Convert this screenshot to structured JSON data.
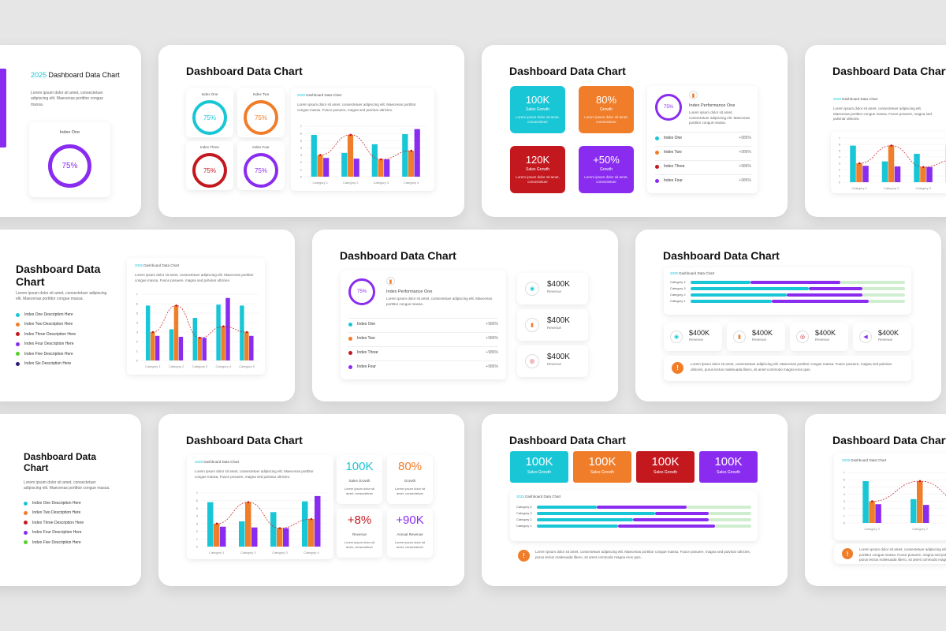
{
  "title": "Dashboard Data Chart",
  "chart_title": "2025 Dashboard Data Chart",
  "chart_title_year": "2025",
  "chart_title_rest": "Dashboard Data Chart",
  "lorem_short": "Lorem ipsum dolor sit amet, consectetuer adipiscing elit. Maecenas porttitor congue massa.",
  "lorem_long": "Lorem ipsum dolor sit amet, consectetuer adipiscing elit. Maecenas porttitor congue massa. Fusce posuere, magna sed pulvinar ultricies.",
  "lorem_note": "Lorem ipsum dolor sit amet, consectetuer adipiscing elit. Maecenas porttitor congue massa. Fusce posuere, magna sed pulvinar ultricies, purus lectus malesuada libero, sit amet commodo magna eros quis.",
  "lorem_kpi": "Lorem ipsum dolor sit amet, consectetuer",
  "colors": {
    "cyan": "#19c6d6",
    "orange": "#f07d2a",
    "red": "#c4181f",
    "purple": "#8a2cf0",
    "green": "#a6e86a",
    "light": "#cfeecf"
  },
  "indexes": [
    "Index One",
    "Index Two",
    "Index Three",
    "Index Four"
  ],
  "ring_value": "75%",
  "index_perf": "Index Performance One",
  "list_value": "+986%",
  "descriptions": [
    "Index One Description Here",
    "Index Two Description Here",
    "Index Three Description Here",
    "Index Four Description Here",
    "Index Five Description Here",
    "Index Six Description Here"
  ],
  "kpis": [
    {
      "value": "100K",
      "label": "Sales Growth"
    },
    {
      "value": "80%",
      "label": "Growth"
    },
    {
      "value": "120K",
      "label": "Sales Growth"
    },
    {
      "value": "+50%",
      "label": "Growth"
    }
  ],
  "kpi_row": {
    "value": "100K",
    "label": "Sales Growth"
  },
  "money": {
    "value": "$400K",
    "label": "Revenue"
  },
  "stats": [
    {
      "value": "100K",
      "label": "Sales Growth"
    },
    {
      "value": "80%",
      "label": "Growth"
    },
    {
      "value": "+8%",
      "label": "Revenue"
    },
    {
      "value": "+90K",
      "label": "Annual Revenue"
    }
  ],
  "categories": [
    "Category 1",
    "Category 2",
    "Category 3",
    "Category 4",
    "Category 5"
  ],
  "hcategories": [
    "Category 4",
    "Category 3",
    "Category 2",
    "Category 1"
  ],
  "chart_data": {
    "type": "bar",
    "title": "2025 Dashboard Data Chart",
    "categories": [
      "Category 1",
      "Category 2",
      "Category 3",
      "Category 4"
    ],
    "series": [
      {
        "values": [
          5.8,
          3.3,
          4.5,
          5.9
        ]
      },
      {
        "values": [
          3.0,
          5.8,
          2.4,
          3.6
        ]
      },
      {
        "values": [
          2.6,
          2.5,
          2.4,
          6.6
        ]
      }
    ],
    "ylim": [
      0,
      7
    ]
  }
}
